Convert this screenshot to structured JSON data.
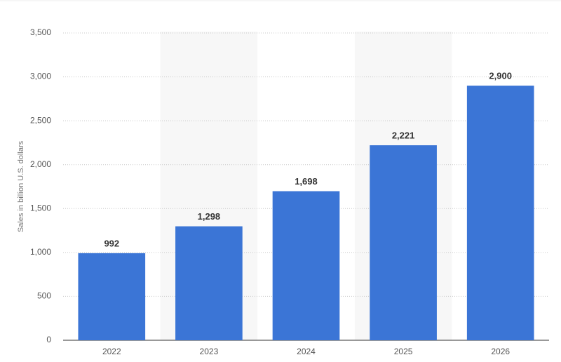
{
  "chart_data": {
    "type": "bar",
    "y_label": "Sales in billion U.S. dollars",
    "categories": [
      "2022",
      "2023",
      "2024",
      "2025",
      "2026"
    ],
    "values": [
      992,
      1298,
      1698,
      2221,
      2900
    ],
    "value_labels": [
      "992",
      "1,298",
      "1,698",
      "2,221",
      "2,900"
    ],
    "color": "#3b75d6",
    "ylim": [
      0,
      3500
    ],
    "yticks": [
      0,
      500,
      {
        "value": 1000,
        "label": "1,000"
      },
      {
        "value": 1500,
        "label": "1,500"
      },
      {
        "value": 2000,
        "label": "2,000"
      },
      {
        "value": 2500,
        "label": "2,500"
      },
      {
        "value": 3000,
        "label": "3,000"
      },
      {
        "value": 3500,
        "label": "3,500"
      }
    ],
    "grid": true
  }
}
